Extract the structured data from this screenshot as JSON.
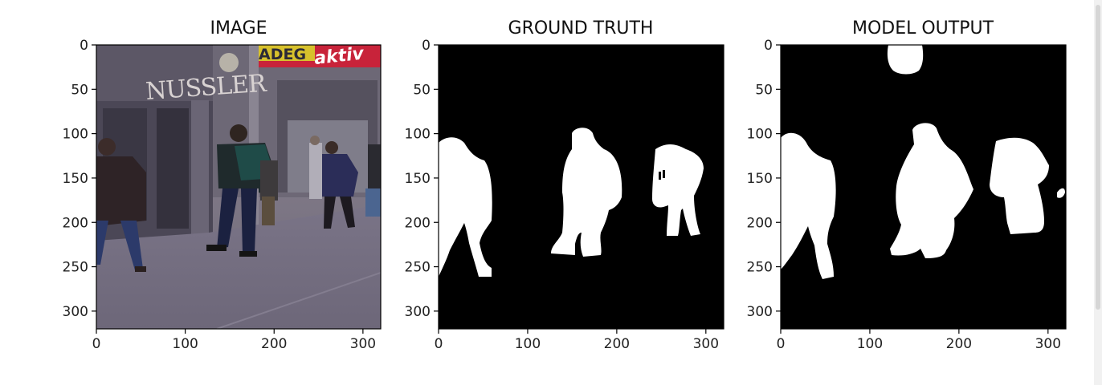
{
  "chart_data": [
    {
      "type": "image",
      "title": "IMAGE",
      "xlim": [
        0,
        320
      ],
      "ylim": [
        0,
        320
      ],
      "y_inverted": true,
      "xticks": [
        0,
        100,
        200,
        300
      ],
      "yticks": [
        0,
        50,
        100,
        150,
        200,
        250,
        300
      ],
      "content": "photo-street-pedestrians",
      "sign_text": [
        "NUSSLER",
        "ADEG",
        "aktiv"
      ]
    },
    {
      "type": "image",
      "title": "GROUND TRUTH",
      "xlim": [
        0,
        320
      ],
      "ylim": [
        0,
        320
      ],
      "y_inverted": true,
      "xticks": [
        0,
        100,
        200,
        300
      ],
      "yticks": [
        0,
        50,
        100,
        150,
        200,
        250,
        300
      ],
      "content": "binary-mask",
      "colors": {
        "background": "#000000",
        "foreground": "#ffffff"
      }
    },
    {
      "type": "image",
      "title": "MODEL OUTPUT",
      "xlim": [
        0,
        320
      ],
      "ylim": [
        0,
        320
      ],
      "y_inverted": true,
      "xticks": [
        0,
        100,
        200,
        300
      ],
      "yticks": [
        0,
        50,
        100,
        150,
        200,
        250,
        300
      ],
      "content": "binary-mask",
      "colors": {
        "background": "#000000",
        "foreground": "#ffffff"
      }
    }
  ]
}
